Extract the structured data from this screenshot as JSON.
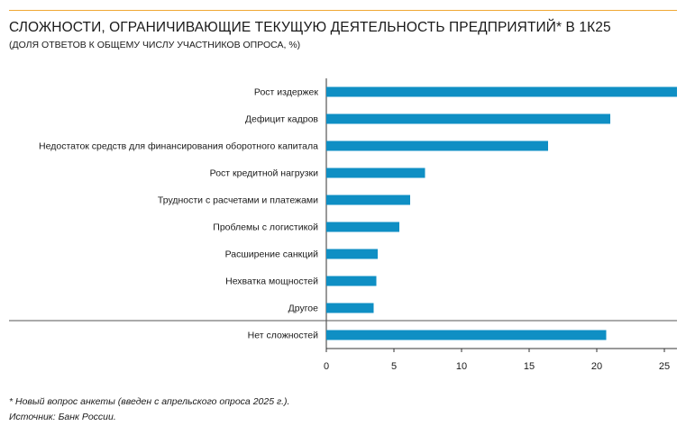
{
  "header": {
    "title": "СЛОЖНОСТИ, ОГРАНИЧИВАЮЩИЕ ТЕКУЩУЮ ДЕЯТЕЛЬНОСТЬ ПРЕДПРИЯТИЙ* В 1К25",
    "subtitle": "(ДОЛЯ ОТВЕТОВ К ОБЩЕМУ ЧИСЛУ УЧАСТНИКОВ ОПРОСА, %)"
  },
  "footer": {
    "footnote": "* Новый вопрос анкеты (введен с апрельского опроса 2025 г.).",
    "source": "Источник: Банк России."
  },
  "colors": {
    "bar": "#0f8fc4",
    "accent_rule": "#f0a833",
    "separator": "#555555"
  },
  "chart_data": {
    "type": "bar",
    "orientation": "horizontal",
    "title": "СЛОЖНОСТИ, ОГРАНИЧИВАЮЩИЕ ТЕКУЩУЮ ДЕЯТЕЛЬНОСТЬ ПРЕДПРИЯТИЙ* В 1К25",
    "subtitle": "(ДОЛЯ ОТВЕТОВ К ОБЩЕМУ ЧИСЛУ УЧАСТНИКОВ ОПРОСА, %)",
    "categories": [
      "Рост издержек",
      "Дефицит кадров",
      "Недостаток средств для финансирования оборотного капитала",
      "Рост кредитной нагрузки",
      "Трудности с расчетами и платежами",
      "Проблемы с логистикой",
      "Расширение санкций",
      "Нехватка мощностей",
      "Другое",
      "Нет сложностей"
    ],
    "values": [
      26.5,
      21.0,
      16.4,
      7.3,
      6.2,
      5.4,
      3.8,
      3.7,
      3.5,
      20.7
    ],
    "separator_before_index": 9,
    "xlim": [
      0,
      26
    ],
    "xticks": [
      "0",
      "5",
      "10",
      "15",
      "20",
      "25"
    ],
    "xtick_values": [
      0,
      5,
      10,
      15,
      20,
      25
    ],
    "xlabel": "",
    "ylabel": "",
    "grid": false,
    "legend": "none"
  }
}
